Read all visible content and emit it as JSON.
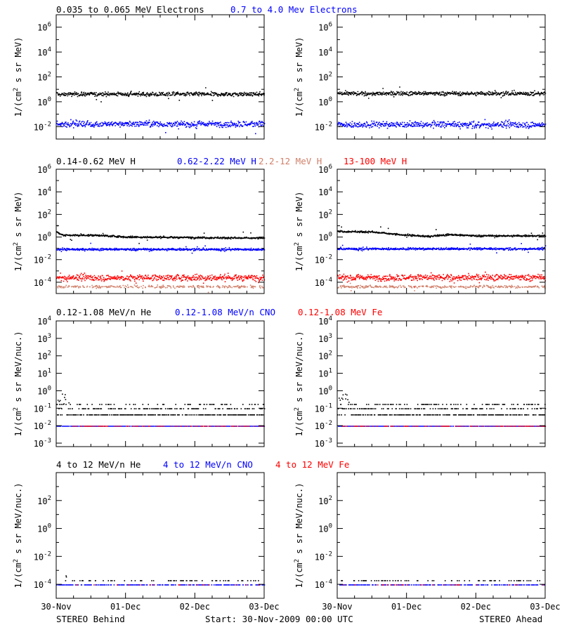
{
  "colors": {
    "black": "#000000",
    "blue": "#0000ff",
    "red": "#ff0000",
    "tan": "#d0806a"
  },
  "footer": {
    "left": "STEREO Behind",
    "center": "Start: 30-Nov-2009 00:00 UTC",
    "right": "STEREO Ahead"
  },
  "x_axis": {
    "tick_labels": [
      "30-Nov",
      "01-Dec",
      "02-Dec",
      "03-Dec"
    ],
    "range_days": [
      0,
      3
    ]
  },
  "rows": [
    {
      "titles": [
        {
          "text": "0.035 to 0.065 MeV Electrons",
          "color": "#000000"
        },
        {
          "text": "0.7 to 4.0 Mev Electrons",
          "color": "#0000ff"
        }
      ],
      "y_label_lines": [
        "1/(cm",
        "2",
        " s sr MeV)"
      ],
      "ylog_range": [
        -3,
        7
      ],
      "ytick_exponents": [
        -2,
        0,
        2,
        4,
        6
      ]
    },
    {
      "titles": [
        {
          "text": "0.14-0.62 MeV H",
          "color": "#000000"
        },
        {
          "text": "0.62-2.22 MeV H",
          "color": "#0000ff"
        },
        {
          "text": "2.2-12 MeV H",
          "color": "#d0806a"
        },
        {
          "text": "13-100 MeV H",
          "color": "#ff0000"
        }
      ],
      "y_label_lines": [
        "1/(cm",
        "2",
        " s sr MeV)"
      ],
      "ylog_range": [
        -5,
        6
      ],
      "ytick_exponents": [
        -4,
        -2,
        0,
        2,
        4,
        6
      ]
    },
    {
      "titles": [
        {
          "text": "0.12-1.08 MeV/n He",
          "color": "#000000"
        },
        {
          "text": "0.12-1.08 MeV/n CNO",
          "color": "#0000ff"
        },
        {
          "text": "0.12-1.08 MeV Fe",
          "color": "#ff0000"
        }
      ],
      "y_label_lines": [
        "1/(cm",
        "2",
        " s sr MeV/nuc.)"
      ],
      "ylog_range": [
        -3.2,
        4
      ],
      "ytick_exponents": [
        -3,
        -2,
        -1,
        0,
        1,
        2,
        3,
        4
      ]
    },
    {
      "titles": [
        {
          "text": "4 to 12 MeV/n He",
          "color": "#000000"
        },
        {
          "text": "4 to 12 MeV/n CNO",
          "color": "#0000ff"
        },
        {
          "text": "4 to 12 MeV Fe",
          "color": "#ff0000"
        }
      ],
      "y_label_lines": [
        "1/(cm",
        "2",
        " s sr MeV/nuc.)"
      ],
      "ylog_range": [
        -5,
        4
      ],
      "ytick_exponents": [
        -4,
        -2,
        0,
        2
      ]
    }
  ],
  "chart_data": [
    {
      "type": "scatter",
      "panel": "row1-behind",
      "title": "0.035 to 0.065 MeV Electrons / 0.7 to 4.0 Mev Electrons",
      "x_range_days": [
        0,
        3
      ],
      "yscale": "log",
      "ylim_exp": [
        -3,
        7
      ],
      "series": [
        {
          "name": "0.035 to 0.065 MeV Electrons",
          "color": "#000000",
          "level_exp": 0.65,
          "scatter_exp": 0.08,
          "density": 1.0
        },
        {
          "name": "0.7 to 4.0 Mev Electrons",
          "color": "#0000ff",
          "level_exp": -1.75,
          "scatter_exp": 0.12,
          "density": 1.0
        }
      ]
    },
    {
      "type": "scatter",
      "panel": "row1-ahead",
      "title": "0.035 to 0.065 MeV Electrons / 0.7 to 4.0 Mev Electrons",
      "x_range_days": [
        0,
        3
      ],
      "yscale": "log",
      "ylim_exp": [
        -3,
        7
      ],
      "series": [
        {
          "name": "0.035 to 0.065 MeV Electrons",
          "color": "#000000",
          "level_exp": 0.7,
          "scatter_exp": 0.08,
          "density": 1.0
        },
        {
          "name": "0.7 to 4.0 Mev Electrons",
          "color": "#0000ff",
          "level_exp": -1.8,
          "scatter_exp": 0.13,
          "density": 1.0
        }
      ]
    },
    {
      "type": "scatter",
      "panel": "row2-behind",
      "title": "0.14-0.62 MeV H / 0.62-2.22 MeV H / 2.2-12 MeV H / 13-100 MeV H",
      "x_range_days": [
        0,
        3
      ],
      "yscale": "log",
      "ylim_exp": [
        -5,
        6
      ],
      "series": [
        {
          "name": "0.14-0.62 MeV H",
          "color": "#000000",
          "level_exp": 0.0,
          "scatter_exp": 0.04,
          "density": 1.0,
          "profile": [
            [
              0,
              0.5
            ],
            [
              0.1,
              0.2
            ],
            [
              0.6,
              0.2
            ],
            [
              1.0,
              0.05
            ],
            [
              2.0,
              0.0
            ],
            [
              3.0,
              -0.05
            ]
          ]
        },
        {
          "name": "0.62-2.22 MeV H",
          "color": "#0000ff",
          "level_exp": -1.05,
          "scatter_exp": 0.05,
          "density": 1.0
        },
        {
          "name": "2.2-12 MeV H",
          "color": "#d0806a",
          "level_exp": -4.35,
          "scatter_exp": 0.06,
          "density": 0.5
        },
        {
          "name": "13-100 MeV H",
          "color": "#ff0000",
          "level_exp": -3.55,
          "scatter_exp": 0.14,
          "density": 1.0
        }
      ]
    },
    {
      "type": "scatter",
      "panel": "row2-ahead",
      "title": "0.14-0.62 MeV H / 0.62-2.22 MeV H / 2.2-12 MeV H / 13-100 MeV H",
      "x_range_days": [
        0,
        3
      ],
      "yscale": "log",
      "ylim_exp": [
        -5,
        6
      ],
      "series": [
        {
          "name": "0.14-0.62 MeV H",
          "color": "#000000",
          "level_exp": 0.1,
          "scatter_exp": 0.04,
          "density": 1.0,
          "profile": [
            [
              0,
              0.45
            ],
            [
              0.5,
              0.4
            ],
            [
              0.9,
              0.15
            ],
            [
              1.3,
              0.0
            ],
            [
              1.6,
              0.15
            ],
            [
              2.0,
              0.05
            ],
            [
              3.0,
              0.05
            ]
          ]
        },
        {
          "name": "0.62-2.22 MeV H",
          "color": "#0000ff",
          "level_exp": -1.0,
          "scatter_exp": 0.05,
          "density": 1.0
        },
        {
          "name": "2.2-12 MeV H",
          "color": "#d0806a",
          "level_exp": -4.35,
          "scatter_exp": 0.06,
          "density": 0.5
        },
        {
          "name": "13-100 MeV H",
          "color": "#ff0000",
          "level_exp": -3.55,
          "scatter_exp": 0.14,
          "density": 1.0
        }
      ]
    },
    {
      "type": "scatter",
      "panel": "row3-behind",
      "title": "0.12-1.08 MeV/n He / 0.12-1.08 MeV/n CNO / 0.12-1.08 MeV Fe",
      "x_range_days": [
        0,
        3
      ],
      "yscale": "log",
      "ylim_exp": [
        -3.2,
        4
      ],
      "series": [
        {
          "name": "0.12-1.08 MeV/n He",
          "color": "#000000",
          "quantized": true,
          "levels_exp": [
            -1.35,
            -1.0,
            -0.75
          ],
          "level_weights": [
            0.55,
            0.3,
            0.15
          ],
          "density": 0.75
        },
        {
          "name": "0.12-1.08 MeV/n CNO",
          "color": "#0000ff",
          "quantized": true,
          "levels_exp": [
            -2.0
          ],
          "level_weights": [
            1
          ],
          "density": 0.6
        },
        {
          "name": "0.12-1.08 MeV Fe",
          "color": "#ff0000",
          "quantized": true,
          "levels_exp": [
            -2.0
          ],
          "level_weights": [
            1
          ],
          "density": 0.2
        }
      ]
    },
    {
      "type": "scatter",
      "panel": "row3-ahead",
      "title": "0.12-1.08 MeV/n He / 0.12-1.08 MeV/n CNO / 0.12-1.08 MeV Fe",
      "x_range_days": [
        0,
        3
      ],
      "yscale": "log",
      "ylim_exp": [
        -3.2,
        4
      ],
      "series": [
        {
          "name": "0.12-1.08 MeV/n He",
          "color": "#000000",
          "quantized": true,
          "levels_exp": [
            -1.35,
            -1.0,
            -0.75
          ],
          "level_weights": [
            0.5,
            0.3,
            0.2
          ],
          "density": 0.8
        },
        {
          "name": "0.12-1.08 MeV/n CNO",
          "color": "#0000ff",
          "quantized": true,
          "levels_exp": [
            -2.0
          ],
          "level_weights": [
            1
          ],
          "density": 0.6
        },
        {
          "name": "0.12-1.08 MeV Fe",
          "color": "#ff0000",
          "quantized": true,
          "levels_exp": [
            -2.0
          ],
          "level_weights": [
            1
          ],
          "density": 0.2
        }
      ]
    },
    {
      "type": "scatter",
      "panel": "row4-behind",
      "title": "4 to 12 MeV/n He / 4 to 12 MeV/n CNO / 4 to 12 MeV Fe",
      "x_range_days": [
        0,
        3
      ],
      "yscale": "log",
      "ylim_exp": [
        -5,
        4
      ],
      "series": [
        {
          "name": "4 to 12 MeV/n He",
          "color": "#000000",
          "quantized": true,
          "levels_exp": [
            -3.7
          ],
          "level_weights": [
            1
          ],
          "density": 0.12
        },
        {
          "name": "4 to 12 MeV/n CNO",
          "color": "#0000ff",
          "quantized": true,
          "levels_exp": [
            -4.0
          ],
          "level_weights": [
            1
          ],
          "density": 0.35
        },
        {
          "name": "4 to 12 MeV Fe",
          "color": "#ff0000",
          "quantized": true,
          "levels_exp": [
            -4.0
          ],
          "level_weights": [
            1
          ],
          "density": 0.05
        }
      ]
    },
    {
      "type": "scatter",
      "panel": "row4-ahead",
      "title": "4 to 12 MeV/n He / 4 to 12 MeV/n CNO / 4 to 12 MeV Fe",
      "x_range_days": [
        0,
        3
      ],
      "yscale": "log",
      "ylim_exp": [
        -5,
        4
      ],
      "series": [
        {
          "name": "4 to 12 MeV/n He",
          "color": "#000000",
          "quantized": true,
          "levels_exp": [
            -3.7
          ],
          "level_weights": [
            1
          ],
          "density": 0.12
        },
        {
          "name": "4 to 12 MeV/n CNO",
          "color": "#0000ff",
          "quantized": true,
          "levels_exp": [
            -4.0
          ],
          "level_weights": [
            1
          ],
          "density": 0.35
        },
        {
          "name": "4 to 12 MeV Fe",
          "color": "#ff0000",
          "quantized": true,
          "levels_exp": [
            -4.0
          ],
          "level_weights": [
            1
          ],
          "density": 0.05
        }
      ]
    }
  ]
}
